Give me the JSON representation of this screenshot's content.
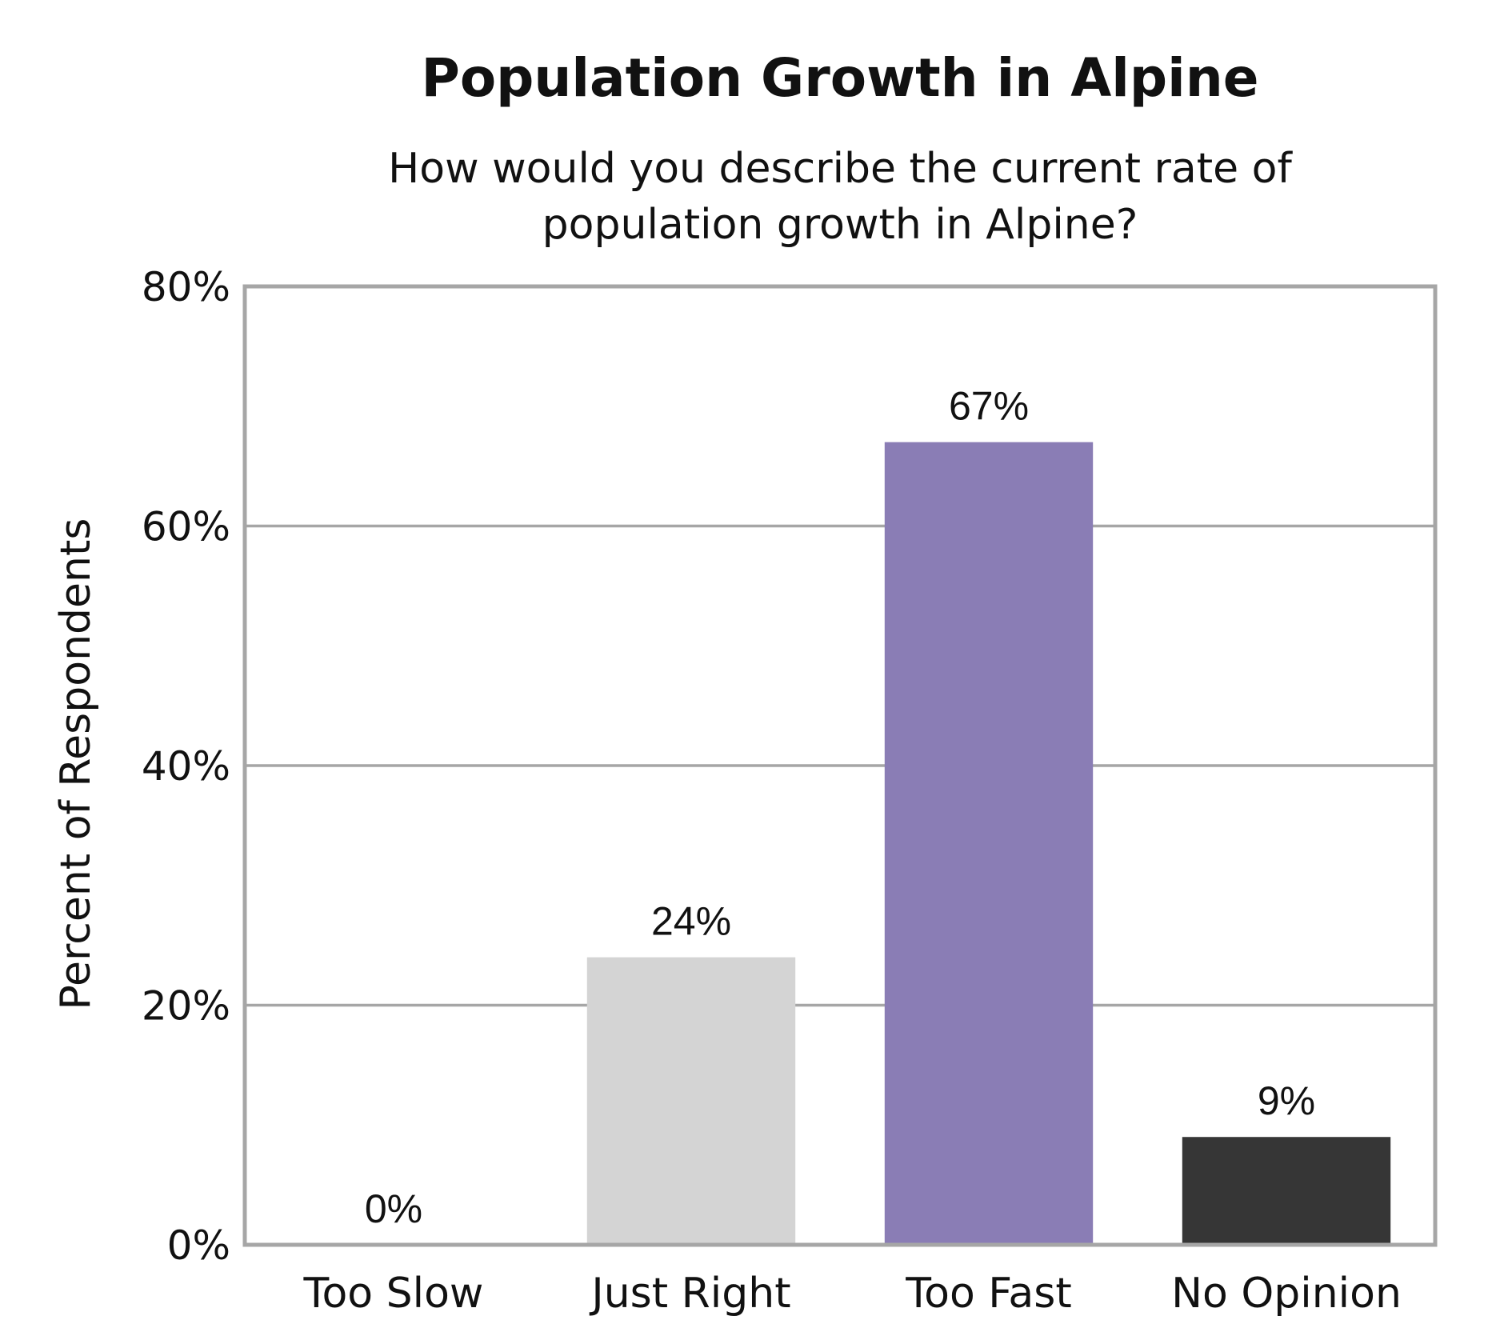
{
  "chart_data": {
    "type": "bar",
    "title": "Population Growth in Alpine",
    "subtitle": [
      "How would you describe the current rate of",
      "population growth in Alpine?"
    ],
    "xlabel": "",
    "ylabel": "Percent of Respondents",
    "categories": [
      "Too Slow",
      "Just Right",
      "Too Fast",
      "No Opinion"
    ],
    "values": [
      0,
      24,
      67,
      9
    ],
    "value_labels": [
      "0%",
      "24%",
      "67%",
      "9%"
    ],
    "colors": [
      "#ffffff",
      "#d4d4d4",
      "#8a7db5",
      "#363636"
    ],
    "ylim": [
      0,
      80
    ],
    "yticks": [
      0,
      20,
      40,
      60,
      80
    ],
    "ytick_labels": [
      "0%",
      "20%",
      "40%",
      "60%",
      "80%"
    ],
    "grid": true,
    "legend": "none"
  }
}
